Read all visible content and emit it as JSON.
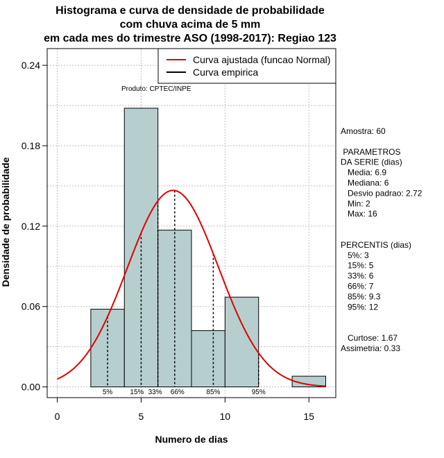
{
  "chart_data": {
    "type": "bar",
    "title_lines": [
      "Histograma e curva de densidade de probabilidade",
      "com chuva acima de 5 mm",
      "em cada mes do trimestre ASO (1998-2017): Regiao 123"
    ],
    "xlabel": "Numero de dias",
    "ylabel": "Densidade de probabilidade",
    "xlim": [
      -0.6,
      16.6
    ],
    "ylim": [
      -0.008,
      0.2525
    ],
    "x_ticks": [
      0,
      5,
      10,
      15
    ],
    "y_ticks": [
      0.0,
      0.06,
      0.12,
      0.18,
      0.24
    ],
    "y_tick_labels": [
      "0.00",
      "0.06",
      "0.12",
      "0.18",
      "0.24"
    ],
    "bins": [
      {
        "start": 2,
        "end": 4,
        "density": 0.058
      },
      {
        "start": 4,
        "end": 6,
        "density": 0.208
      },
      {
        "start": 6,
        "end": 8,
        "density": 0.117
      },
      {
        "start": 8,
        "end": 10,
        "density": 0.042
      },
      {
        "start": 10,
        "end": 12,
        "density": 0.067
      },
      {
        "start": 12,
        "end": 14,
        "density": 0.0
      },
      {
        "start": 14,
        "end": 16,
        "density": 0.008
      }
    ],
    "bar_color": "#b7cece",
    "curve_color": "#dd0000",
    "normal_fit": {
      "mean": 6.9,
      "sd": 2.72,
      "x_range": [
        0,
        16
      ]
    },
    "percentile_lines": [
      3,
      5,
      6,
      7,
      9.3,
      12
    ],
    "percentile_labels": [
      {
        "x": 3,
        "text": "5%"
      },
      {
        "x": 5,
        "text": "15%"
      },
      {
        "x": 6,
        "text": "33%"
      },
      {
        "x": 7,
        "text": "66%"
      },
      {
        "x": 9.3,
        "text": "85%"
      },
      {
        "x": 12,
        "text": "95%"
      }
    ],
    "legend": {
      "placement": "top-right",
      "entries": [
        {
          "label": "Curva ajustada (funcao Normal)",
          "color": "#dd0000"
        },
        {
          "label": "Curva empirica",
          "color": "#000000"
        }
      ]
    },
    "annotation": "Produto: CPTEC/INPE",
    "grid": true,
    "stats_lines": [
      "Amostra: 60",
      "",
      " PARAMETROS",
      "DA SERIE (dias)",
      "   Media: 6.9",
      "   Mediana: 6",
      "   Desvio padrao: 2.72",
      "   Min: 2",
      "   Max: 16",
      "",
      "",
      "PERCENTIS (dias)",
      "   5%: 3",
      "   15%: 5",
      "   33%: 6",
      "   66%: 7",
      "   85%: 9.3",
      "   95%: 12",
      "",
      "",
      "   Curtose: 1.67",
      "Assimetria: 0.33"
    ]
  }
}
